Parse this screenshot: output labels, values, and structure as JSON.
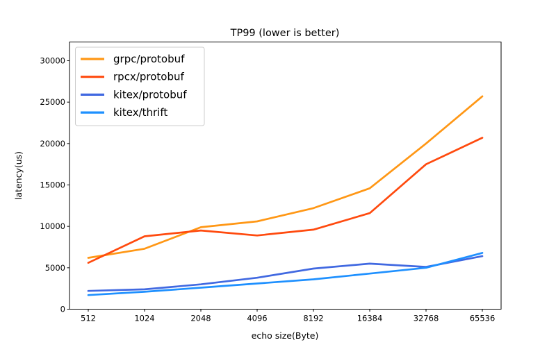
{
  "figure": {
    "background": "#ffffff",
    "axis_color": "#000000",
    "legend_border_color": "#cccccc"
  },
  "chart_data": {
    "type": "line",
    "title": "TP99 (lower is better)",
    "xlabel": "echo size(Byte)",
    "ylabel": "latency(us)",
    "categories": [
      "512",
      "1024",
      "2048",
      "4096",
      "8192",
      "16384",
      "32768",
      "65536"
    ],
    "yticks": [
      0,
      5000,
      10000,
      15000,
      20000,
      25000,
      30000
    ],
    "ylim": [
      0,
      32250
    ],
    "grid": false,
    "legend_position": "upper-left",
    "series": [
      {
        "name": "grpc/protobuf",
        "color": "#ff9715",
        "values": [
          6200,
          7300,
          9900,
          10600,
          12200,
          14600,
          20000,
          25700
        ]
      },
      {
        "name": "rpcx/protobuf",
        "color": "#ff4a0e",
        "values": [
          5600,
          8800,
          9500,
          8900,
          9600,
          11600,
          17500,
          20700
        ]
      },
      {
        "name": "kitex/protobuf",
        "color": "#4169e1",
        "values": [
          2200,
          2400,
          3000,
          3800,
          4900,
          5500,
          5100,
          6400
        ]
      },
      {
        "name": "kitex/thrift",
        "color": "#1e90ff",
        "values": [
          1700,
          2100,
          2600,
          3100,
          3600,
          4300,
          5000,
          6800
        ]
      }
    ]
  }
}
